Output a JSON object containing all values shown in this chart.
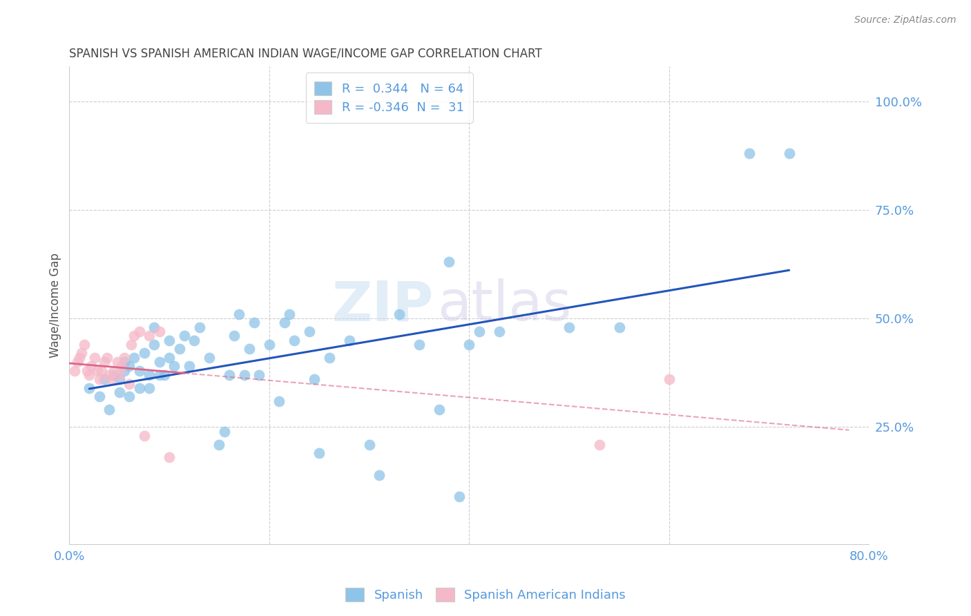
{
  "title": "SPANISH VS SPANISH AMERICAN INDIAN WAGE/INCOME GAP CORRELATION CHART",
  "source": "Source: ZipAtlas.com",
  "ylabel": "Wage/Income Gap",
  "xlim": [
    0.0,
    0.8
  ],
  "ylim": [
    -0.02,
    1.08
  ],
  "xtick_positions": [
    0.0,
    0.2,
    0.4,
    0.6,
    0.8
  ],
  "xtick_labels": [
    "0.0%",
    "",
    "",
    "",
    "80.0%"
  ],
  "ytick_positions": [
    0.25,
    0.5,
    0.75,
    1.0
  ],
  "ytick_labels": [
    "25.0%",
    "50.0%",
    "75.0%",
    "100.0%"
  ],
  "R_blue": 0.344,
  "N_blue": 64,
  "R_pink": -0.346,
  "N_pink": 31,
  "blue_color": "#8EC4E8",
  "pink_color": "#F5B8C8",
  "blue_line_color": "#2255BB",
  "pink_line_color": "#DD6688",
  "blue_scatter_x": [
    0.02,
    0.03,
    0.035,
    0.04,
    0.045,
    0.05,
    0.05,
    0.055,
    0.055,
    0.06,
    0.06,
    0.065,
    0.07,
    0.07,
    0.075,
    0.08,
    0.08,
    0.085,
    0.085,
    0.09,
    0.09,
    0.095,
    0.1,
    0.1,
    0.105,
    0.11,
    0.115,
    0.12,
    0.125,
    0.13,
    0.14,
    0.15,
    0.155,
    0.16,
    0.165,
    0.17,
    0.175,
    0.18,
    0.185,
    0.19,
    0.2,
    0.21,
    0.215,
    0.22,
    0.225,
    0.24,
    0.245,
    0.25,
    0.26,
    0.28,
    0.3,
    0.31,
    0.33,
    0.35,
    0.37,
    0.38,
    0.39,
    0.4,
    0.41,
    0.43,
    0.5,
    0.55,
    0.68,
    0.72
  ],
  "blue_scatter_y": [
    0.34,
    0.32,
    0.36,
    0.29,
    0.37,
    0.33,
    0.36,
    0.38,
    0.4,
    0.32,
    0.39,
    0.41,
    0.34,
    0.38,
    0.42,
    0.34,
    0.37,
    0.44,
    0.48,
    0.37,
    0.4,
    0.37,
    0.41,
    0.45,
    0.39,
    0.43,
    0.46,
    0.39,
    0.45,
    0.48,
    0.41,
    0.21,
    0.24,
    0.37,
    0.46,
    0.51,
    0.37,
    0.43,
    0.49,
    0.37,
    0.44,
    0.31,
    0.49,
    0.51,
    0.45,
    0.47,
    0.36,
    0.19,
    0.41,
    0.45,
    0.21,
    0.14,
    0.51,
    0.44,
    0.29,
    0.63,
    0.09,
    0.44,
    0.47,
    0.47,
    0.48,
    0.48,
    0.88,
    0.88
  ],
  "pink_scatter_x": [
    0.005,
    0.008,
    0.01,
    0.012,
    0.015,
    0.018,
    0.02,
    0.022,
    0.025,
    0.028,
    0.03,
    0.032,
    0.035,
    0.038,
    0.04,
    0.042,
    0.045,
    0.048,
    0.05,
    0.052,
    0.055,
    0.06,
    0.062,
    0.065,
    0.07,
    0.075,
    0.08,
    0.09,
    0.1,
    0.53,
    0.6
  ],
  "pink_scatter_y": [
    0.38,
    0.4,
    0.41,
    0.42,
    0.44,
    0.38,
    0.37,
    0.39,
    0.41,
    0.38,
    0.36,
    0.38,
    0.4,
    0.41,
    0.37,
    0.36,
    0.38,
    0.4,
    0.37,
    0.39,
    0.41,
    0.35,
    0.44,
    0.46,
    0.47,
    0.23,
    0.46,
    0.47,
    0.18,
    0.21,
    0.36
  ],
  "watermark_part1": "ZIP",
  "watermark_part2": "atlas",
  "background_color": "#FFFFFF",
  "grid_color": "#CCCCCC",
  "tick_color": "#5599DD",
  "title_color": "#444444",
  "source_color": "#888888"
}
